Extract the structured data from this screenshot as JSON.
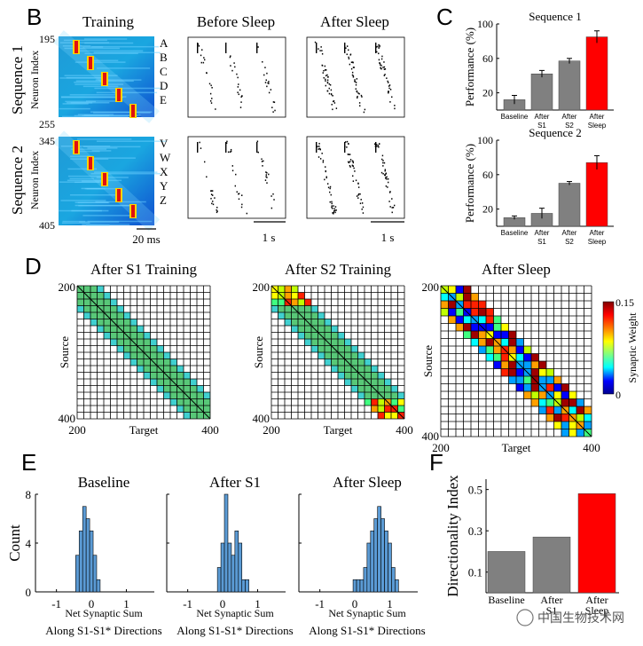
{
  "panel_letters": [
    "B",
    "C",
    "D",
    "E",
    "F"
  ],
  "panel_b": {
    "titles": [
      "Training",
      "Before Sleep",
      "After Sleep"
    ],
    "row_labels": [
      "Sequence 1",
      "Sequence 2"
    ],
    "ylabel": "Neuron Index",
    "seq1_ticks": [
      "195",
      "255"
    ],
    "seq2_ticks": [
      "345",
      "405"
    ],
    "seq1_letters": [
      "A",
      "B",
      "C",
      "D",
      "E"
    ],
    "seq2_letters": [
      "V",
      "W",
      "X",
      "Y",
      "Z"
    ],
    "scalebars": [
      "20 ms",
      "1 s",
      "1 s"
    ]
  },
  "panel_c": {
    "ylabel": "Performance (%)",
    "charts": [
      {
        "title": "Sequence 1",
        "yticks": [
          "20",
          "60",
          "100"
        ],
        "values": [
          12,
          42,
          57,
          85
        ],
        "errors": [
          5,
          4,
          3,
          7
        ]
      },
      {
        "title": "Sequence 2",
        "yticks": [
          "20",
          "60",
          "100"
        ],
        "values": [
          10,
          15,
          50,
          74
        ],
        "errors": [
          2,
          6,
          2,
          8
        ]
      }
    ],
    "categories": [
      [
        "Baseline"
      ],
      [
        "After",
        "S1"
      ],
      [
        "After",
        "S2"
      ],
      [
        "After",
        "Sleep"
      ]
    ],
    "colors": [
      "#808080",
      "#808080",
      "#808080",
      "#ff0000"
    ]
  },
  "panel_d": {
    "titles": [
      "After S1 Training",
      "After S2 Training",
      "After Sleep"
    ],
    "xlabel": "Target",
    "ylabel": "Source",
    "ticks": [
      "200",
      "400"
    ],
    "colorbar_label": "Synaptic Weight",
    "colorbar_ticks": [
      "0.15",
      "0"
    ]
  },
  "panel_e": {
    "titles": [
      "Baseline",
      "After S1",
      "After Sleep"
    ],
    "ylabel": "Count",
    "yticks": [
      "0",
      "4",
      "8"
    ],
    "xticks": [
      "-1",
      "0",
      "1"
    ],
    "xlabel_line1": "Net Synaptic Sum",
    "xlabel_line2": "Along S1-S1* Directions",
    "hist_color": "#5b9bd5",
    "histograms": [
      {
        "name": "Baseline",
        "start": -0.45,
        "width": 0.1,
        "counts": [
          3,
          5,
          7,
          6,
          5,
          3,
          1
        ]
      },
      {
        "name": "After S1",
        "start": -0.15,
        "width": 0.1,
        "counts": [
          2,
          4,
          8,
          4,
          3,
          5,
          4,
          1,
          1
        ]
      },
      {
        "name": "After Sleep",
        "start": -0.05,
        "width": 0.1,
        "counts": [
          1,
          1,
          1,
          2,
          4,
          5,
          6,
          7,
          6,
          5,
          4,
          2,
          1
        ]
      }
    ]
  },
  "panel_f": {
    "ylabel": "Directionality Index",
    "yticks": [
      "0.1",
      "0.3",
      "0.5"
    ],
    "categories": [
      [
        "Baseline"
      ],
      [
        "After",
        "S1"
      ],
      [
        "After",
        "Sleep"
      ]
    ],
    "values": [
      0.2,
      0.27,
      0.48
    ],
    "colors": [
      "#808080",
      "#808080",
      "#ff0000"
    ]
  },
  "watermark": "中国生物技术网",
  "chart_data": [
    {
      "type": "bar",
      "title": "Sequence 1",
      "ylabel": "Performance (%)",
      "categories": [
        "Baseline",
        "After S1",
        "After S2",
        "After Sleep"
      ],
      "values": [
        12,
        42,
        57,
        85
      ],
      "errors": [
        5,
        4,
        3,
        7
      ],
      "ylim": [
        0,
        100
      ]
    },
    {
      "type": "bar",
      "title": "Sequence 2",
      "ylabel": "Performance (%)",
      "categories": [
        "Baseline",
        "After S1",
        "After S2",
        "After Sleep"
      ],
      "values": [
        10,
        15,
        50,
        74
      ],
      "errors": [
        2,
        6,
        2,
        8
      ],
      "ylim": [
        0,
        100
      ]
    },
    {
      "type": "bar",
      "ylabel": "Directionality Index",
      "categories": [
        "Baseline",
        "After S1",
        "After Sleep"
      ],
      "values": [
        0.2,
        0.27,
        0.48
      ],
      "ylim": [
        0,
        0.55
      ]
    }
  ]
}
